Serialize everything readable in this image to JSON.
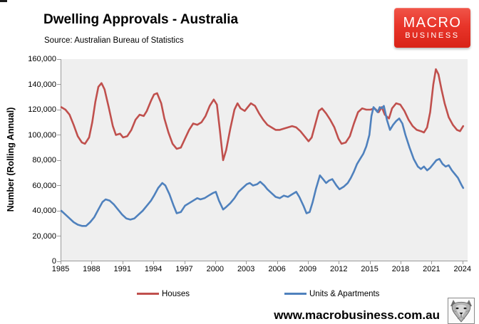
{
  "header": {
    "title": "Dwelling Approvals - Australia",
    "source": "Source: Australian Bureau of Statistics"
  },
  "logo": {
    "top_text": "MACRO",
    "bottom_text": "BUSINESS",
    "bg_color": "#e8352a",
    "text_color": "#ffffff"
  },
  "footer": {
    "website": "www.macrobusiness.com.au",
    "mascot_icon": "wolf-mascot-icon"
  },
  "chart_data": {
    "type": "line",
    "title": "Dwelling Approvals - Australia",
    "xlabel": "",
    "ylabel": "Number (Rolling Annual)",
    "ylim": [
      0,
      160000
    ],
    "yticks": [
      0,
      20000,
      40000,
      60000,
      80000,
      100000,
      120000,
      140000,
      160000
    ],
    "ytick_labels": [
      "0",
      "20,000",
      "40,000",
      "60,000",
      "80,000",
      "100,000",
      "120,000",
      "140,000",
      "160,000"
    ],
    "xlim": [
      1985,
      2024.5
    ],
    "xticks": [
      1985,
      1988,
      1991,
      1994,
      1997,
      2000,
      2003,
      2006,
      2009,
      2012,
      2015,
      2018,
      2021,
      2024
    ],
    "grid": false,
    "plot_background": "#efefef",
    "axis_color": "#9a9a9a",
    "legend_position": "bottom",
    "series": [
      {
        "name": "Houses",
        "color": "#c0504d",
        "x": [
          1985.0,
          1985.4,
          1985.8,
          1986.2,
          1986.6,
          1987.0,
          1987.3,
          1987.7,
          1988.0,
          1988.3,
          1988.6,
          1988.9,
          1989.2,
          1989.6,
          1990.0,
          1990.3,
          1990.7,
          1991.0,
          1991.4,
          1991.8,
          1992.2,
          1992.6,
          1993.0,
          1993.3,
          1993.7,
          1994.0,
          1994.3,
          1994.7,
          1995.0,
          1995.4,
          1995.8,
          1996.2,
          1996.6,
          1997.0,
          1997.4,
          1997.8,
          1998.2,
          1998.6,
          1999.0,
          1999.4,
          1999.8,
          2000.1,
          2000.4,
          2000.7,
          2001.0,
          2001.4,
          2001.8,
          2002.1,
          2002.4,
          2002.8,
          2003.1,
          2003.4,
          2003.8,
          2004.2,
          2004.6,
          2005.0,
          2005.4,
          2005.8,
          2006.2,
          2006.6,
          2007.0,
          2007.4,
          2007.8,
          2008.2,
          2008.6,
          2009.0,
          2009.3,
          2009.6,
          2010.0,
          2010.3,
          2010.7,
          2011.1,
          2011.5,
          2011.9,
          2012.2,
          2012.6,
          2013.0,
          2013.4,
          2013.8,
          2014.2,
          2014.6,
          2015.0,
          2015.4,
          2015.8,
          2016.1,
          2016.4,
          2016.8,
          2017.1,
          2017.5,
          2017.9,
          2018.3,
          2018.7,
          2019.1,
          2019.5,
          2019.9,
          2020.2,
          2020.5,
          2020.8,
          2021.1,
          2021.35,
          2021.6,
          2021.9,
          2022.2,
          2022.6,
          2023.0,
          2023.4,
          2023.7,
          2024.0
        ],
        "y": [
          122000,
          120000,
          116000,
          108000,
          99000,
          94000,
          93000,
          98000,
          110000,
          126000,
          138000,
          141000,
          136000,
          122000,
          107000,
          100000,
          101000,
          98000,
          99000,
          104000,
          112000,
          116000,
          115000,
          119000,
          127000,
          132000,
          133000,
          125000,
          113000,
          102000,
          93000,
          89000,
          90000,
          97000,
          104000,
          109000,
          108000,
          110000,
          115000,
          123000,
          128000,
          124000,
          103000,
          80000,
          88000,
          105000,
          120000,
          125000,
          121000,
          119000,
          122000,
          125000,
          123000,
          117000,
          112000,
          108000,
          106000,
          104000,
          104000,
          105000,
          106000,
          107000,
          106000,
          103000,
          99000,
          95000,
          98000,
          107000,
          119000,
          121000,
          117000,
          112000,
          106000,
          97000,
          93000,
          94000,
          99000,
          109000,
          118000,
          121000,
          120000,
          120000,
          121000,
          118000,
          122000,
          116000,
          113000,
          121000,
          125000,
          124000,
          119000,
          112000,
          107000,
          104000,
          103000,
          102000,
          106000,
          118000,
          140000,
          152000,
          148000,
          136000,
          125000,
          114000,
          108000,
          104000,
          103000,
          107000
        ]
      },
      {
        "name": "Units & Apartments",
        "color": "#4f81bd",
        "x": [
          1985.0,
          1985.4,
          1985.8,
          1986.2,
          1986.6,
          1987.0,
          1987.4,
          1987.8,
          1988.2,
          1988.6,
          1989.0,
          1989.3,
          1989.7,
          1990.1,
          1990.5,
          1990.9,
          1991.3,
          1991.7,
          1992.1,
          1992.5,
          1992.9,
          1993.3,
          1993.7,
          1994.0,
          1994.4,
          1994.8,
          1995.1,
          1995.5,
          1995.9,
          1996.2,
          1996.6,
          1997.0,
          1997.4,
          1997.8,
          1998.2,
          1998.5,
          1998.9,
          1999.3,
          1999.7,
          2000.0,
          2000.3,
          2000.7,
          2001.0,
          2001.4,
          2001.8,
          2002.2,
          2002.6,
          2003.0,
          2003.3,
          2003.6,
          2004.0,
          2004.3,
          2004.7,
          2005.0,
          2005.4,
          2005.8,
          2006.2,
          2006.6,
          2007.0,
          2007.4,
          2007.8,
          2008.1,
          2008.5,
          2008.8,
          2009.1,
          2009.4,
          2009.7,
          2010.1,
          2010.4,
          2010.7,
          2011.0,
          2011.3,
          2011.7,
          2012.0,
          2012.4,
          2012.8,
          2013.1,
          2013.4,
          2013.7,
          2014.0,
          2014.3,
          2014.6,
          2014.9,
          2015.1,
          2015.3,
          2015.5,
          2015.7,
          2015.9,
          2016.1,
          2016.3,
          2016.6,
          2016.9,
          2017.2,
          2017.5,
          2017.8,
          2018.1,
          2018.4,
          2018.8,
          2019.2,
          2019.6,
          2019.9,
          2020.2,
          2020.5,
          2020.8,
          2021.1,
          2021.4,
          2021.7,
          2022.0,
          2022.3,
          2022.6,
          2022.9,
          2023.2,
          2023.5,
          2023.8,
          2024.0
        ],
        "y": [
          40000,
          37000,
          34000,
          31000,
          29000,
          28000,
          28000,
          31000,
          35000,
          41000,
          47000,
          49000,
          48000,
          45000,
          41000,
          37000,
          34000,
          33000,
          34000,
          37000,
          40000,
          44000,
          48000,
          52000,
          58000,
          62000,
          60000,
          53000,
          44000,
          38000,
          39000,
          44000,
          46000,
          48000,
          50000,
          49000,
          50000,
          52000,
          54000,
          55000,
          48000,
          41000,
          43000,
          46000,
          50000,
          55000,
          58000,
          61000,
          62000,
          60000,
          61000,
          63000,
          60000,
          57000,
          54000,
          51000,
          50000,
          52000,
          51000,
          53000,
          55000,
          51000,
          44000,
          38000,
          39000,
          47000,
          57000,
          68000,
          65000,
          62000,
          64000,
          65000,
          60000,
          57000,
          59000,
          62000,
          66000,
          71000,
          77000,
          81000,
          85000,
          91000,
          100000,
          115000,
          122000,
          120000,
          118000,
          122000,
          121000,
          123000,
          112000,
          104000,
          108000,
          111000,
          113000,
          109000,
          100000,
          90000,
          81000,
          75000,
          73000,
          75000,
          72000,
          74000,
          77000,
          80000,
          81000,
          77000,
          75000,
          76000,
          72000,
          69000,
          66000,
          61000,
          58000
        ]
      }
    ]
  }
}
